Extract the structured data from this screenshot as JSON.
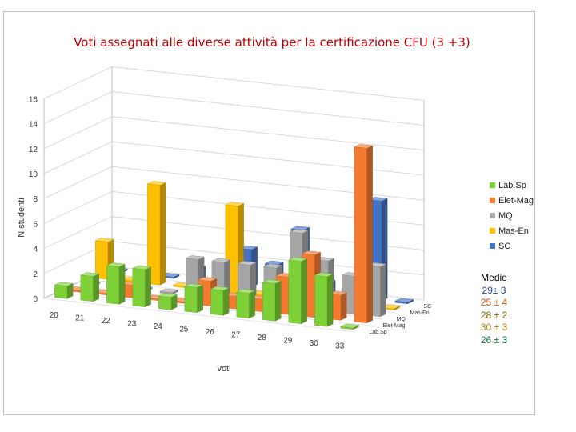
{
  "chart_data": {
    "type": "bar",
    "title": "Voti assegnati alle diverse attività per la certificazione CFU (3 +3)",
    "xlabel": "voti",
    "ylabel": "N studenti",
    "ylim": [
      0,
      16
    ],
    "yticks": [
      "0",
      "2",
      "4",
      "6",
      "8",
      "10",
      "12",
      "14",
      "16"
    ],
    "categories": [
      "20",
      "21",
      "22",
      "23",
      "24",
      "25",
      "26",
      "27",
      "28",
      "29",
      "30",
      "33"
    ],
    "series": [
      {
        "name": "Lab.Sp",
        "color": "#7dd136",
        "values": [
          1,
          2,
          3,
          3,
          1,
          2,
          2,
          2,
          3,
          5,
          4,
          0
        ]
      },
      {
        "name": "Elet-Mag",
        "color": "#f47a30",
        "values": [
          0,
          0,
          1,
          0,
          0,
          2,
          1,
          1,
          3,
          5,
          2,
          14
        ]
      },
      {
        "name": "MQ",
        "color": "#a6a6a6",
        "values": [
          0,
          0,
          0,
          0,
          3,
          3,
          3,
          3,
          6,
          4,
          3,
          4
        ]
      },
      {
        "name": "Mas-En",
        "color": "#ffc000",
        "values": [
          3,
          0,
          8,
          0,
          0,
          7,
          0,
          0,
          2,
          0,
          3,
          0
        ]
      },
      {
        "name": "SC",
        "color": "#4472c4",
        "values": [
          0,
          0,
          0,
          1,
          1,
          3,
          2,
          5,
          1,
          1,
          8,
          0
        ]
      }
    ],
    "depth_labels": [
      "Lab.Sp",
      "Elet-Mag",
      "MQ",
      "Mas-En",
      "SC"
    ],
    "legend_position": "right",
    "grid": true
  },
  "medie": {
    "title": "Medie",
    "values": [
      {
        "text": "29± 3",
        "color": "#1f3f8f"
      },
      {
        "text": "25 ± 4",
        "color": "#c55a11"
      },
      {
        "text": "28 ± 2",
        "color": "#7f6000"
      },
      {
        "text": "30 ± 3",
        "color": "#b8860b"
      },
      {
        "text": "26 ± 3",
        "color": "#1e7a3a"
      }
    ]
  }
}
